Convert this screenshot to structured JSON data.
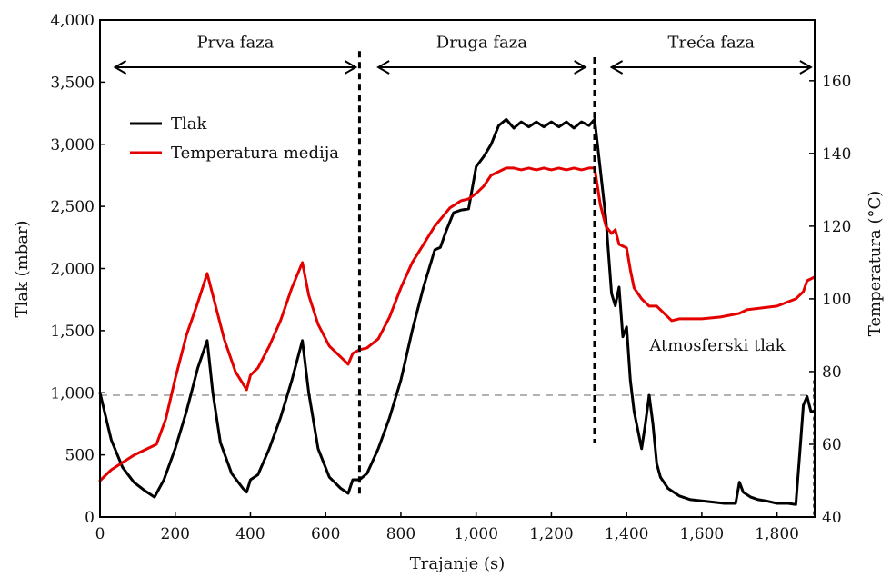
{
  "chart_data": {
    "type": "line",
    "xlabel": "Trajanje (s)",
    "ylabel_left": "Tlak (mbar)",
    "ylabel_right": "Temperatura (°C)",
    "xlim": [
      0,
      1900
    ],
    "ylim_left": [
      0,
      4000
    ],
    "ylim_right": [
      40,
      176.7
    ],
    "x_ticks": [
      "0",
      "200",
      "400",
      "600",
      "800",
      "1,000",
      "1,200",
      "1,400",
      "1,600",
      "1,800"
    ],
    "x_tick_values": [
      0,
      200,
      400,
      600,
      800,
      1000,
      1200,
      1400,
      1600,
      1800
    ],
    "y_left_ticks": [
      "0",
      "500",
      "1,000",
      "1,500",
      "2,000",
      "2,500",
      "3,000",
      "3,500",
      "4,000"
    ],
    "y_left_tick_values": [
      0,
      500,
      1000,
      1500,
      2000,
      2500,
      3000,
      3500,
      4000
    ],
    "y_right_ticks": [
      "40",
      "60",
      "80",
      "100",
      "120",
      "140",
      "160"
    ],
    "y_right_tick_values": [
      40,
      60,
      80,
      100,
      120,
      140,
      160
    ],
    "legend": {
      "placement": "upper-left"
    },
    "phases": [
      {
        "label": "Prva faza",
        "start": 40,
        "end": 680
      },
      {
        "label": "Druga faza",
        "start": 740,
        "end": 1290
      },
      {
        "label": "Treća faza",
        "start": 1360,
        "end": 1890
      }
    ],
    "phase_boundaries": [
      690,
      1315
    ],
    "reference_line": {
      "label": "Atmosferski tlak",
      "value": 980,
      "color": "#b3b3b3"
    },
    "series": [
      {
        "name": "Tlak",
        "color": "#000000",
        "axis": "left",
        "x": [
          0,
          30,
          60,
          90,
          120,
          145,
          170,
          200,
          230,
          260,
          285,
          300,
          320,
          350,
          380,
          390,
          400,
          420,
          450,
          480,
          510,
          538,
          555,
          580,
          610,
          640,
          660,
          672,
          690,
          710,
          740,
          770,
          800,
          830,
          860,
          890,
          905,
          920,
          940,
          960,
          980,
          1000,
          1020,
          1040,
          1060,
          1080,
          1100,
          1120,
          1140,
          1160,
          1180,
          1200,
          1220,
          1240,
          1260,
          1280,
          1300,
          1315,
          1330,
          1345,
          1360,
          1370,
          1380,
          1390,
          1400,
          1410,
          1420,
          1440,
          1450,
          1460,
          1470,
          1480,
          1490,
          1510,
          1540,
          1570,
          1600,
          1630,
          1660,
          1690,
          1700,
          1710,
          1730,
          1750,
          1770,
          1800,
          1830,
          1850,
          1860,
          1870,
          1880,
          1890,
          1900
        ],
        "values": [
          1000,
          620,
          400,
          280,
          210,
          160,
          300,
          550,
          850,
          1200,
          1420,
          1000,
          600,
          350,
          230,
          200,
          300,
          340,
          550,
          800,
          1100,
          1420,
          1000,
          550,
          320,
          230,
          190,
          300,
          300,
          350,
          550,
          800,
          1100,
          1500,
          1850,
          2150,
          2170,
          2300,
          2450,
          2470,
          2480,
          2820,
          2900,
          3000,
          3150,
          3200,
          3130,
          3180,
          3140,
          3180,
          3140,
          3180,
          3140,
          3180,
          3130,
          3180,
          3150,
          3200,
          2800,
          2400,
          1800,
          1700,
          1850,
          1450,
          1530,
          1100,
          850,
          550,
          750,
          980,
          750,
          430,
          320,
          230,
          170,
          140,
          130,
          120,
          110,
          110,
          280,
          200,
          160,
          140,
          130,
          110,
          110,
          100,
          500,
          900,
          970,
          850,
          850
        ]
      },
      {
        "name": "Temperatura medija",
        "color": "#e50000",
        "axis": "right",
        "x": [
          0,
          30,
          60,
          90,
          120,
          150,
          175,
          200,
          230,
          260,
          285,
          300,
          330,
          360,
          390,
          400,
          420,
          450,
          480,
          510,
          538,
          555,
          580,
          610,
          640,
          660,
          672,
          690,
          710,
          740,
          770,
          800,
          830,
          860,
          890,
          910,
          930,
          960,
          980,
          1000,
          1020,
          1040,
          1060,
          1080,
          1100,
          1120,
          1140,
          1160,
          1180,
          1200,
          1220,
          1240,
          1260,
          1280,
          1300,
          1315,
          1330,
          1345,
          1360,
          1370,
          1380,
          1400,
          1410,
          1420,
          1440,
          1460,
          1480,
          1500,
          1520,
          1540,
          1600,
          1650,
          1700,
          1720,
          1760,
          1800,
          1850,
          1870,
          1880,
          1900
        ],
        "values": [
          50,
          53,
          55,
          57,
          58.5,
          60,
          67,
          78,
          90,
          99,
          107,
          101,
          89,
          80,
          75,
          79,
          81,
          87,
          94,
          103,
          110,
          101,
          93,
          87,
          84,
          82,
          85,
          86,
          86.5,
          89,
          95,
          103,
          110,
          115,
          120,
          122.5,
          125,
          127,
          127.5,
          129,
          131,
          134,
          135,
          136,
          136,
          135.5,
          136,
          135.5,
          136,
          135.5,
          136,
          135.5,
          136,
          135.5,
          136,
          136,
          126,
          120,
          118,
          119,
          115,
          114,
          108,
          103,
          100,
          98,
          98,
          96,
          94,
          94.5,
          94.5,
          95,
          96,
          97,
          97.5,
          98,
          100,
          102,
          105,
          106
        ]
      }
    ]
  }
}
